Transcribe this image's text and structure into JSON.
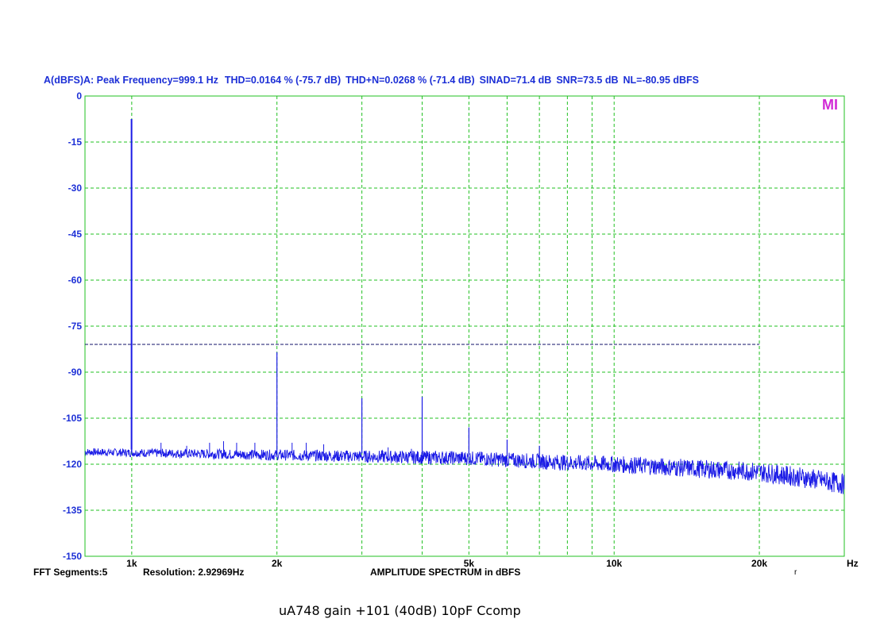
{
  "header": {
    "channel": "A(dBFS)",
    "peak": "A: Peak Frequency=999.1 Hz",
    "thd": "THD=0.0164 % (-75.7 dB)",
    "thdn": "THD+N=0.0268 % (-71.4 dB)",
    "sinad": "SINAD=71.4 dB",
    "snr": "SNR=73.5 dB",
    "nl": "NL=-80.95 dBFS"
  },
  "footer": {
    "segments": "FFT Segments:5",
    "resolution": "Resolution: 2.92969Hz",
    "title": "AMPLITUDE SPECTRUM in dBFS",
    "corner_mark": "r"
  },
  "caption": "uA748 gain +101 (40dB)  10pF Ccomp",
  "logo": "MI",
  "chart_data": {
    "type": "line",
    "title": "AMPLITUDE SPECTRUM in dBFS",
    "xlabel": "Hz",
    "ylabel": "A(dBFS)",
    "xscale": "log",
    "xlim": [
      800,
      30000
    ],
    "ylim": [
      -150,
      0
    ],
    "yticks": [
      0,
      -15,
      -30,
      -45,
      -60,
      -75,
      -90,
      -105,
      -120,
      -135,
      -150
    ],
    "ytick_labels": [
      "0",
      "-15",
      "-30",
      "-45",
      "-60",
      "-75",
      "-90",
      "-105",
      "-120",
      "-135",
      "-150"
    ],
    "xtick_labels": [
      {
        "x": 1000,
        "label": "1k"
      },
      {
        "x": 2000,
        "label": "2k"
      },
      {
        "x": 5000,
        "label": "5k"
      },
      {
        "x": 10000,
        "label": "10k"
      },
      {
        "x": 20000,
        "label": "20k"
      }
    ],
    "grid": true,
    "grid_color": "#22c022",
    "series_color": "#1a1ae6",
    "nl_line": {
      "y": -80.95,
      "x_end": 20000,
      "color": "#1a1ae6"
    },
    "noise_floor": [
      {
        "x": 800,
        "y": -116
      },
      {
        "x": 2000,
        "y": -117
      },
      {
        "x": 5000,
        "y": -118
      },
      {
        "x": 8000,
        "y": -119.5
      },
      {
        "x": 10000,
        "y": -120
      },
      {
        "x": 15000,
        "y": -121.5
      },
      {
        "x": 20000,
        "y": -122.5
      },
      {
        "x": 25000,
        "y": -124.5
      },
      {
        "x": 30000,
        "y": -126.5
      }
    ],
    "peaks": [
      {
        "x": 999.1,
        "y": -7.5
      },
      {
        "x": 2000,
        "y": -83.5
      },
      {
        "x": 3000,
        "y": -98.5
      },
      {
        "x": 4000,
        "y": -98
      },
      {
        "x": 5000,
        "y": -108
      },
      {
        "x": 6000,
        "y": -112
      },
      {
        "x": 7000,
        "y": -114
      }
    ],
    "small_spurs": [
      {
        "x": 1150,
        "y": -113
      },
      {
        "x": 1300,
        "y": -114
      },
      {
        "x": 1450,
        "y": -113
      },
      {
        "x": 1550,
        "y": -112.5
      },
      {
        "x": 1650,
        "y": -113
      },
      {
        "x": 1800,
        "y": -113
      },
      {
        "x": 2150,
        "y": -113
      },
      {
        "x": 2300,
        "y": -113
      },
      {
        "x": 2500,
        "y": -113.5
      },
      {
        "x": 3400,
        "y": -114.5
      },
      {
        "x": 3800,
        "y": -115
      }
    ]
  }
}
